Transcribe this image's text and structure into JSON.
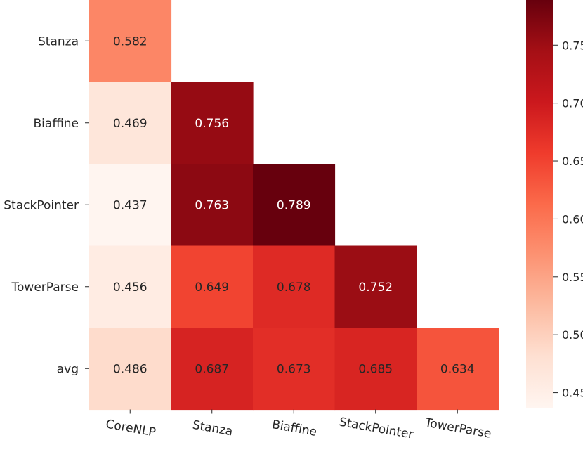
{
  "chart_data": {
    "type": "heatmap",
    "title": "",
    "xlabel": "",
    "ylabel": "",
    "x_categories": [
      "CoreNLP",
      "Stanza",
      "Biaffine",
      "StackPointer",
      "TowerParse"
    ],
    "y_categories": [
      "Stanza",
      "Biaffine",
      "StackPointer",
      "TowerParse",
      "avg"
    ],
    "values": [
      [
        0.582,
        null,
        null,
        null,
        null
      ],
      [
        0.469,
        0.756,
        null,
        null,
        null
      ],
      [
        0.437,
        0.763,
        0.789,
        null,
        null
      ],
      [
        0.456,
        0.649,
        0.678,
        0.752,
        null
      ],
      [
        0.486,
        0.687,
        0.673,
        0.685,
        0.634
      ]
    ],
    "value_labels": [
      [
        "0.582",
        "",
        "",
        "",
        ""
      ],
      [
        "0.469",
        "0.756",
        "",
        "",
        ""
      ],
      [
        "0.437",
        "0.763",
        "0.789",
        "",
        ""
      ],
      [
        "0.456",
        "0.649",
        "0.678",
        "0.752",
        ""
      ],
      [
        "0.486",
        "0.687",
        "0.673",
        "0.685",
        "0.634"
      ]
    ],
    "colormap": "Reds",
    "vmin": 0.437,
    "vmax": 0.789,
    "colorbar": {
      "ticks": [
        0.45,
        0.5,
        0.55,
        0.6,
        0.65,
        0.7,
        0.75
      ],
      "tick_labels": [
        "0.45",
        "0.50",
        "0.55",
        "0.60",
        "0.65",
        "0.70",
        "0.75"
      ],
      "placement": "right"
    },
    "grid": false,
    "x_tick_rotation": "slanted"
  }
}
